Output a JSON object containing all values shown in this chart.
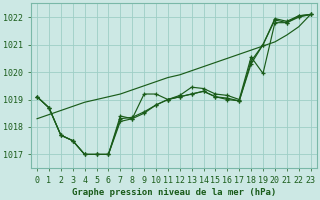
{
  "title": "Graphe pression niveau de la mer (hPa)",
  "background_color": "#cce8e4",
  "grid_color": "#9ecec6",
  "line_color": "#1a5c1a",
  "hours": [
    0,
    1,
    2,
    3,
    4,
    5,
    6,
    7,
    8,
    9,
    10,
    11,
    12,
    13,
    14,
    15,
    16,
    17,
    18,
    19,
    20,
    21,
    22,
    23
  ],
  "line_zigzag": [
    1019.1,
    1018.7,
    1017.7,
    1017.5,
    1017.0,
    1017.0,
    1017.0,
    1018.4,
    1018.3,
    1019.2,
    1019.2,
    1019.0,
    1019.15,
    1019.45,
    1019.4,
    1019.2,
    1019.15,
    1019.0,
    1020.55,
    1019.95,
    1021.8,
    1021.8,
    1022.0,
    1022.1
  ],
  "line_mid1": [
    1019.1,
    1018.7,
    1017.7,
    1017.5,
    1017.0,
    1017.0,
    1017.0,
    1018.3,
    1018.35,
    1018.55,
    1018.8,
    1019.0,
    1019.1,
    1019.2,
    1019.3,
    1019.1,
    1019.05,
    1018.95,
    1020.4,
    1021.0,
    1021.95,
    1021.85,
    1022.05,
    1022.1
  ],
  "line_mid2": [
    1019.1,
    1018.7,
    1017.7,
    1017.5,
    1017.0,
    1017.0,
    1017.0,
    1018.2,
    1018.3,
    1018.5,
    1018.8,
    1019.0,
    1019.1,
    1019.2,
    1019.3,
    1019.1,
    1019.0,
    1018.95,
    1020.3,
    1021.0,
    1021.9,
    1021.8,
    1022.05,
    1022.1
  ],
  "line_trend": [
    1018.3,
    1018.45,
    1018.6,
    1018.75,
    1018.9,
    1019.0,
    1019.1,
    1019.2,
    1019.35,
    1019.5,
    1019.65,
    1019.8,
    1019.9,
    1020.05,
    1020.2,
    1020.35,
    1020.5,
    1020.65,
    1020.8,
    1020.95,
    1021.1,
    1021.35,
    1021.65,
    1022.1
  ],
  "ylim": [
    1016.5,
    1022.5
  ],
  "yticks": [
    1017,
    1018,
    1019,
    1020,
    1021,
    1022
  ],
  "tick_fontsize": 6,
  "title_fontsize": 6.5,
  "figsize": [
    3.2,
    2.0
  ],
  "dpi": 100
}
